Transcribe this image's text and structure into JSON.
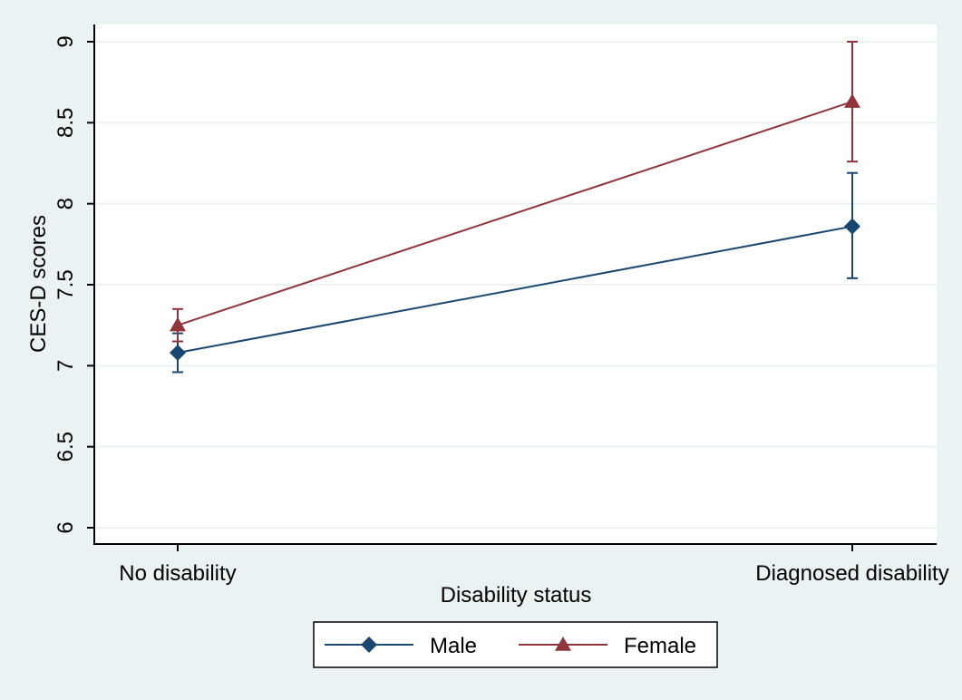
{
  "chart_data": {
    "type": "line",
    "title": "",
    "xlabel": "Disability status",
    "ylabel": "CES-D scores",
    "categories": [
      "No disability",
      "Diagnosed disability"
    ],
    "ylim": [
      6,
      9
    ],
    "yticks": [
      "6",
      "6.5",
      "7",
      "7.5",
      "8",
      "8.5",
      "9"
    ],
    "grid": true,
    "legend_position": "bottom",
    "series": [
      {
        "name": "Male",
        "color": "#1a476f",
        "marker": "diamond",
        "values": [
          7.08,
          7.86
        ],
        "ci_low": [
          6.96,
          7.54
        ],
        "ci_high": [
          7.2,
          8.19
        ]
      },
      {
        "name": "Female",
        "color": "#90353b",
        "marker": "triangle",
        "values": [
          7.25,
          8.63
        ],
        "ci_low": [
          7.15,
          8.26
        ],
        "ci_high": [
          7.35,
          9.0
        ]
      }
    ]
  }
}
